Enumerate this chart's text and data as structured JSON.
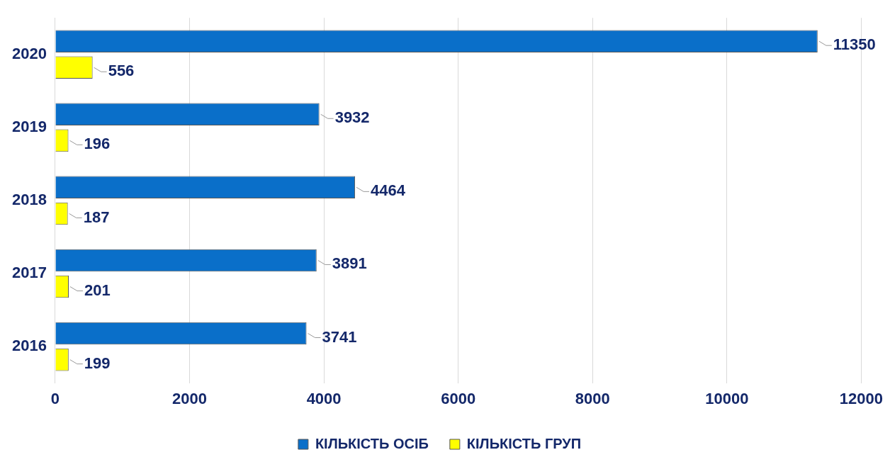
{
  "chart_data": {
    "type": "bar",
    "orientation": "horizontal",
    "categories": [
      "2020",
      "2019",
      "2018",
      "2017",
      "2016"
    ],
    "series": [
      {
        "name": "КІЛЬКІСТЬ ОСІБ",
        "color": "#0a6fc9",
        "values": [
          11350,
          3932,
          4464,
          3891,
          3741
        ]
      },
      {
        "name": "КІЛЬКІСТЬ ГРУП",
        "color": "#ffff00",
        "values": [
          556,
          196,
          187,
          201,
          199
        ]
      }
    ],
    "xlim": [
      0,
      12000
    ],
    "xticks": [
      0,
      2000,
      4000,
      6000,
      8000,
      10000,
      12000
    ],
    "grid": "x",
    "legend": "bottom",
    "data_labels": true
  }
}
